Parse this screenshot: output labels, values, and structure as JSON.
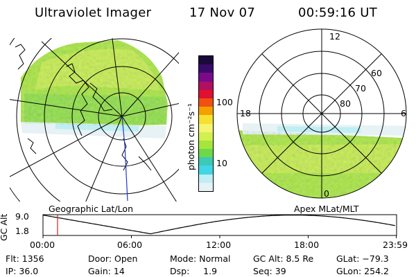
{
  "header": {
    "title": "Ultraviolet Imager",
    "date": "17 Nov 07",
    "time": "00:59:16 UT"
  },
  "left_panel": {
    "label": "Geographic Lat/Lon"
  },
  "colorbar": {
    "label": "photon cm⁻²s⁻¹",
    "ticks": [
      "100",
      "10"
    ],
    "colors": [
      "#1a0a3a",
      "#3a0a6a",
      "#7a0a8a",
      "#b01060",
      "#e01030",
      "#f05010",
      "#f4a000",
      "#f6e030",
      "#f4f470",
      "#d2f050",
      "#a6e63c",
      "#6cd84a",
      "#3ccab6",
      "#40d6e6",
      "#bfeef4",
      "#e6f2f4"
    ]
  },
  "right_panel": {
    "label": "Apex MLat/MLT",
    "mlt_labels": [
      "12",
      "18",
      "6",
      "0"
    ],
    "lat_labels": [
      "60",
      "70",
      "80"
    ]
  },
  "timeline": {
    "axis_label": "GC Alt",
    "y_labels": [
      "9.0",
      "1.8"
    ],
    "x_labels": [
      "00:00",
      "06:00",
      "12:00",
      "18:00",
      "23:59"
    ],
    "x_hours": [
      0,
      6,
      12,
      18,
      23.983
    ],
    "current_hour": 0.988,
    "curve_color": "#000000",
    "marker_color": "#cc2222"
  },
  "info": {
    "flt": "Flt: 1356",
    "ip": "IP: 36.0",
    "door": "Door: Open",
    "gain": "Gain: 14",
    "mode": "Mode: Normal",
    "dsp": "Dsp:     1.9",
    "gc_alt": "GC Alt: 8.5 Re",
    "seq": "Seq: 39",
    "glat": "GLat: −79.3",
    "glon": "GLon: 254.2"
  }
}
